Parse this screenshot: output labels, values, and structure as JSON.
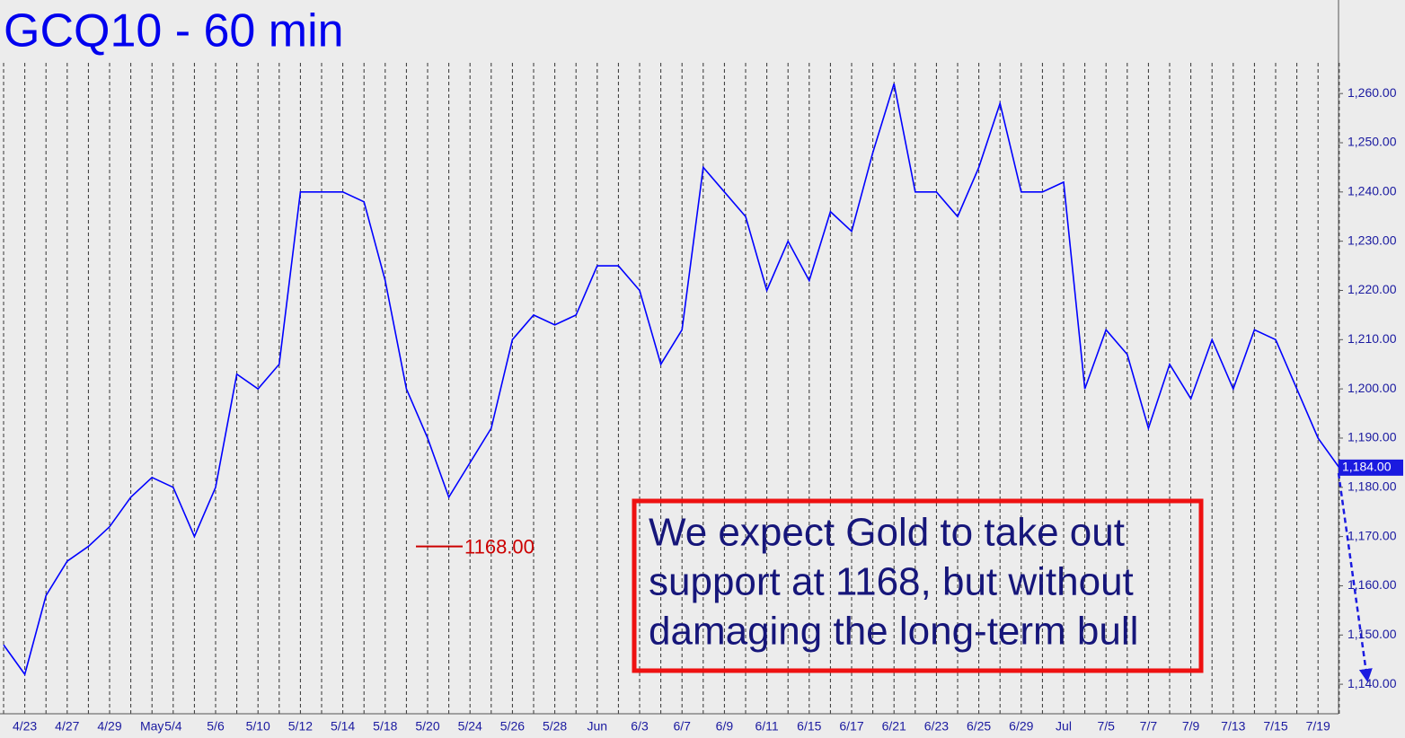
{
  "chart_data": {
    "type": "line",
    "title": "GCQ10 - 60 min",
    "categories": [
      null,
      "4/23",
      null,
      "4/27",
      null,
      "4/29",
      null,
      "May",
      "5/4",
      null,
      "5/6",
      null,
      "5/10",
      null,
      "5/12",
      null,
      "5/14",
      null,
      "5/18",
      null,
      "5/20",
      null,
      "5/24",
      null,
      "5/26",
      null,
      "5/28",
      null,
      "Jun",
      null,
      "6/3",
      null,
      "6/7",
      null,
      "6/9",
      null,
      "6/11",
      null,
      "6/15",
      null,
      "6/17",
      null,
      "6/21",
      null,
      "6/23",
      null,
      "6/25",
      null,
      "6/29",
      null,
      "Jul",
      null,
      "7/5",
      null,
      "7/7",
      null,
      "7/9",
      null,
      "7/13",
      null,
      "7/15",
      null,
      "7/19",
      null
    ],
    "values": [
      1148,
      1142,
      1158,
      1165,
      1168,
      1172,
      1178,
      1182,
      1180,
      1170,
      1180,
      1203,
      1200,
      1205,
      1240,
      1240,
      1240,
      1238,
      1222,
      1200,
      1190,
      1178,
      1185,
      1192,
      1210,
      1215,
      1213,
      1215,
      1225,
      1225,
      1220,
      1205,
      1212,
      1245,
      1240,
      1235,
      1220,
      1230,
      1222,
      1236,
      1232,
      1248,
      1262,
      1240,
      1240,
      1235,
      1245,
      1258,
      1240,
      1240,
      1242,
      1200,
      1212,
      1207,
      1192,
      1205,
      1198,
      1210,
      1200,
      1212,
      1210,
      1200,
      1190,
      1184
    ],
    "color": "#0000ff",
    "ylim": [
      1134,
      1279
    ],
    "yticks": [
      {
        "value": 1140,
        "label": "1,140.00"
      },
      {
        "value": 1150,
        "label": "1,150.00"
      },
      {
        "value": 1160,
        "label": "1,160.00"
      },
      {
        "value": 1170,
        "label": "1,170.00"
      },
      {
        "value": 1180,
        "label": "1,180.00"
      },
      {
        "value": 1190,
        "label": "1,190.00"
      },
      {
        "value": 1200,
        "label": "1,200.00"
      },
      {
        "value": 1210,
        "label": "1,210.00"
      },
      {
        "value": 1220,
        "label": "1,220.00"
      },
      {
        "value": 1230,
        "label": "1,230.00"
      },
      {
        "value": 1240,
        "label": "1,240.00"
      },
      {
        "value": 1250,
        "label": "1,250.00"
      },
      {
        "value": 1260,
        "label": "1,260.00"
      }
    ],
    "grid": true,
    "support": {
      "value": 1168,
      "label": "1168.00"
    },
    "last_price": {
      "value": 1184,
      "label": "1,184.00"
    },
    "note": [
      "We expect Gold to take out",
      "support at 1168, but without",
      "damaging the long-term bull"
    ]
  }
}
